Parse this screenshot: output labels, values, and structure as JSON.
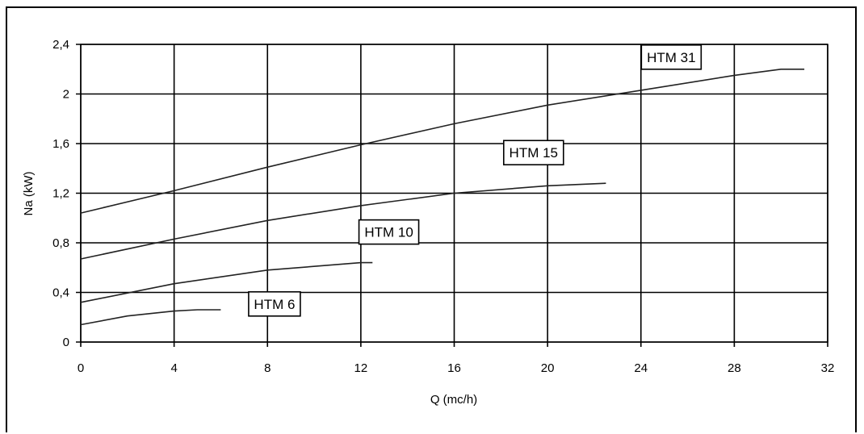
{
  "chart_data": {
    "type": "line",
    "title": "",
    "xlabel": "Q (mc/h)",
    "ylabel": "Na (kW)",
    "xlim": [
      0,
      32
    ],
    "ylim": [
      0,
      2.4
    ],
    "x_ticks": [
      "0",
      "4",
      "8",
      "12",
      "16",
      "20",
      "24",
      "28",
      "32"
    ],
    "y_ticks": [
      "0",
      "0,4",
      "0,8",
      "1,2",
      "1,6",
      "2",
      "2,4"
    ],
    "grid": true,
    "series": [
      {
        "name": "HTM 31",
        "x": [
          0,
          4,
          8,
          12,
          16,
          20,
          24,
          28,
          30,
          31
        ],
        "y": [
          1.04,
          1.22,
          1.41,
          1.59,
          1.76,
          1.91,
          2.03,
          2.15,
          2.2,
          2.2
        ]
      },
      {
        "name": "HTM 15",
        "x": [
          0,
          4,
          8,
          12,
          16,
          20,
          22.5
        ],
        "y": [
          0.67,
          0.83,
          0.98,
          1.1,
          1.2,
          1.26,
          1.28
        ]
      },
      {
        "name": "HTM 10",
        "x": [
          0,
          4,
          8,
          12,
          12.5
        ],
        "y": [
          0.32,
          0.47,
          0.58,
          0.64,
          0.64
        ]
      },
      {
        "name": "HTM 6",
        "x": [
          0,
          2,
          4,
          5,
          6
        ],
        "y": [
          0.14,
          0.21,
          0.25,
          0.26,
          0.26
        ]
      }
    ]
  }
}
